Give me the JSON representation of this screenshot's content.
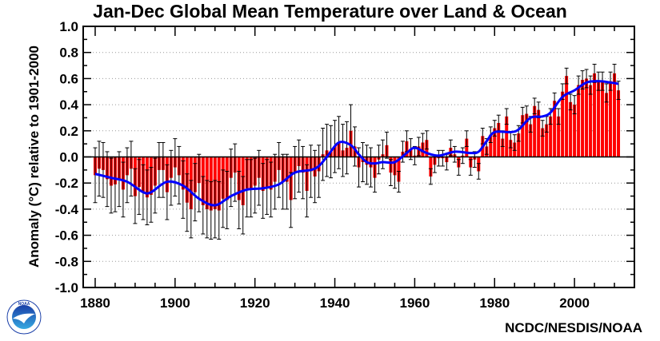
{
  "chart_data": {
    "type": "bar",
    "title": "Jan-Dec Global Mean Temperature over Land & Ocean",
    "ylabel": "Anomaly (°C) relative to 1901-2000",
    "xlabel": "",
    "source": "NCDC/NESDIS/NOAA",
    "logo_text": "NOAA",
    "xlim": [
      1877,
      2015
    ],
    "ylim": [
      -1.0,
      1.0
    ],
    "xticks": [
      1880,
      1900,
      1920,
      1940,
      1960,
      1980,
      2000
    ],
    "yticks": [
      "1.0",
      "0.8",
      "0.6",
      "0.4",
      "0.2",
      "0.0",
      "-0.2",
      "-0.4",
      "-0.6",
      "-0.8",
      "-1.0"
    ],
    "grid": "horizontal dotted",
    "colors": {
      "bars": "#ff0000",
      "smooth": "#0000ff",
      "errorbars": "#000000"
    },
    "years_start": 1880,
    "values": [
      -0.14,
      -0.09,
      -0.1,
      -0.17,
      -0.22,
      -0.21,
      -0.17,
      -0.25,
      -0.14,
      -0.09,
      -0.3,
      -0.23,
      -0.27,
      -0.31,
      -0.29,
      -0.22,
      -0.1,
      -0.1,
      -0.27,
      -0.16,
      -0.08,
      -0.14,
      -0.25,
      -0.35,
      -0.4,
      -0.27,
      -0.2,
      -0.37,
      -0.4,
      -0.41,
      -0.4,
      -0.41,
      -0.32,
      -0.33,
      -0.16,
      -0.12,
      -0.33,
      -0.37,
      -0.24,
      -0.24,
      -0.22,
      -0.16,
      -0.26,
      -0.23,
      -0.25,
      -0.19,
      -0.1,
      -0.19,
      -0.19,
      -0.33,
      -0.12,
      -0.07,
      -0.12,
      -0.26,
      -0.11,
      -0.15,
      -0.11,
      0.02,
      0.05,
      0.04,
      0.08,
      0.11,
      0.05,
      0.07,
      0.2,
      0.08,
      -0.08,
      -0.04,
      -0.06,
      -0.08,
      -0.16,
      -0.02,
      0.02,
      0.09,
      -0.12,
      -0.14,
      -0.19,
      0.04,
      0.12,
      0.06,
      0.01,
      0.08,
      0.11,
      0.13,
      -0.15,
      -0.06,
      -0.01,
      -0.01,
      -0.04,
      0.07,
      0.02,
      -0.08,
      0.01,
      0.14,
      -0.08,
      -0.02,
      -0.11,
      0.16,
      0.08,
      0.17,
      0.22,
      0.26,
      0.14,
      0.31,
      0.13,
      0.11,
      0.18,
      0.32,
      0.33,
      0.25,
      0.39,
      0.36,
      0.22,
      0.25,
      0.31,
      0.43,
      0.31,
      0.5,
      0.62,
      0.42,
      0.4,
      0.55,
      0.59,
      0.6,
      0.55,
      0.64,
      0.58,
      0.58,
      0.49,
      0.58,
      0.64,
      0.51
    ],
    "uncertainty": [
      0.21,
      0.21,
      0.21,
      0.21,
      0.21,
      0.21,
      0.21,
      0.21,
      0.21,
      0.21,
      0.21,
      0.21,
      0.21,
      0.21,
      0.21,
      0.21,
      0.21,
      0.21,
      0.21,
      0.21,
      0.22,
      0.22,
      0.22,
      0.22,
      0.22,
      0.22,
      0.22,
      0.22,
      0.22,
      0.22,
      0.22,
      0.22,
      0.22,
      0.22,
      0.22,
      0.22,
      0.22,
      0.22,
      0.22,
      0.22,
      0.21,
      0.21,
      0.21,
      0.21,
      0.21,
      0.21,
      0.21,
      0.21,
      0.21,
      0.21,
      0.2,
      0.2,
      0.2,
      0.2,
      0.2,
      0.2,
      0.2,
      0.2,
      0.2,
      0.2,
      0.2,
      0.2,
      0.2,
      0.2,
      0.2,
      0.15,
      0.15,
      0.15,
      0.15,
      0.15,
      0.11,
      0.11,
      0.11,
      0.1,
      0.1,
      0.1,
      0.08,
      0.08,
      0.08,
      0.08,
      0.07,
      0.07,
      0.07,
      0.07,
      0.06,
      0.06,
      0.06,
      0.06,
      0.06,
      0.06,
      0.06,
      0.06,
      0.06,
      0.06,
      0.06,
      0.06,
      0.06,
      0.06,
      0.06,
      0.06,
      0.06,
      0.06,
      0.06,
      0.06,
      0.06,
      0.06,
      0.06,
      0.06,
      0.06,
      0.06,
      0.06,
      0.06,
      0.06,
      0.06,
      0.06,
      0.06,
      0.06,
      0.06,
      0.06,
      0.06,
      0.07,
      0.07,
      0.07,
      0.07,
      0.07,
      0.07,
      0.07,
      0.07,
      0.07,
      0.07,
      0.07,
      0.07
    ],
    "smooth": {
      "x": [
        1880,
        1884,
        1888,
        1892,
        1894,
        1898,
        1902,
        1906,
        1910,
        1914,
        1918,
        1922,
        1926,
        1930,
        1934,
        1936,
        1938,
        1941,
        1944,
        1946,
        1948,
        1950,
        1952,
        1955,
        1958,
        1960,
        1963,
        1966,
        1970,
        1974,
        1976,
        1978,
        1980,
        1984,
        1986,
        1989,
        1992,
        1994,
        1997,
        2000,
        2003,
        2006,
        2009,
        2011
      ],
      "y": [
        -0.13,
        -0.16,
        -0.19,
        -0.27,
        -0.27,
        -0.19,
        -0.22,
        -0.32,
        -0.37,
        -0.3,
        -0.25,
        -0.24,
        -0.21,
        -0.12,
        -0.1,
        -0.07,
        0.0,
        0.11,
        0.09,
        0.02,
        -0.04,
        -0.05,
        -0.04,
        -0.04,
        0.03,
        0.07,
        0.03,
        0.01,
        0.04,
        0.03,
        0.04,
        0.12,
        0.19,
        0.19,
        0.21,
        0.3,
        0.31,
        0.34,
        0.46,
        0.51,
        0.57,
        0.58,
        0.57,
        0.56
      ]
    }
  }
}
